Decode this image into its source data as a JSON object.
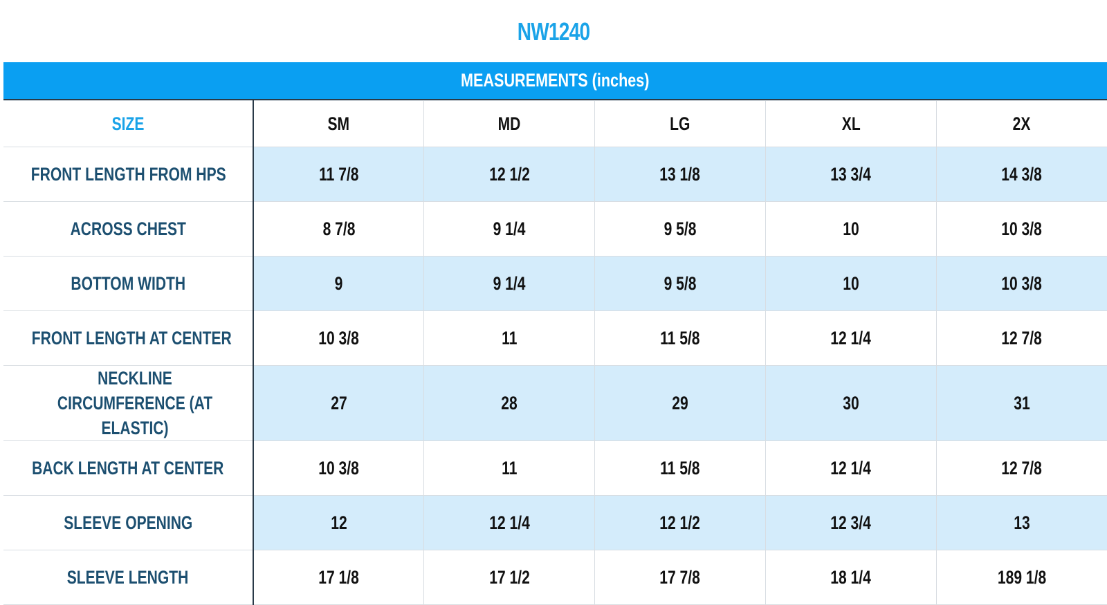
{
  "title": "NW1240",
  "banner": "MEASUREMENTS (inches)",
  "size_label": "SIZE",
  "sizes": [
    "SM",
    "MD",
    "LG",
    "XL",
    "2X"
  ],
  "rows": [
    {
      "label": "FRONT LENGTH  FROM HPS",
      "values": [
        "11 7/8",
        "12 1/2",
        "13 1/8",
        "13 3/4",
        "14 3/8"
      ]
    },
    {
      "label": "ACROSS CHEST",
      "values": [
        "8 7/8",
        "9 1/4",
        "9 5/8",
        "10",
        "10 3/8"
      ]
    },
    {
      "label": "BOTTOM WIDTH",
      "values": [
        "9",
        "9 1/4",
        "9 5/8",
        "10",
        "10 3/8"
      ]
    },
    {
      "label": "FRONT LENGTH AT CENTER",
      "values": [
        "10 3/8",
        "11",
        "11 5/8",
        "12 1/4",
        "12 7/8"
      ]
    },
    {
      "label": "NECKLINE CIRCUMFERENCE (AT ELASTIC)",
      "values": [
        "27",
        "28",
        "29",
        "30",
        "31"
      ]
    },
    {
      "label": "BACK LENGTH AT CENTER",
      "values": [
        "10 3/8",
        "11",
        "11 5/8",
        "12 1/4",
        "12 7/8"
      ]
    },
    {
      "label": "SLEEVE OPENING",
      "values": [
        "12",
        "12 1/4",
        "12 1/2",
        "12 3/4",
        "13"
      ]
    },
    {
      "label": "SLEEVE LENGTH",
      "values": [
        "17 1/8",
        "17 1/2",
        "17 7/8",
        "18 1/4",
        "189 1/8"
      ]
    }
  ]
}
